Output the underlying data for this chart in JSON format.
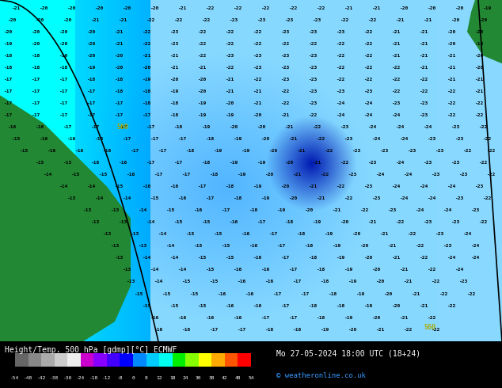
{
  "title_left": "Height/Temp. 500 hPa [gdmp][°C] ECMWF",
  "title_right": "Mo 27-05-2024 18:00 UTC (18+24)",
  "credit": "© weatheronline.co.uk",
  "colorbar_levels": [
    -54,
    -48,
    -42,
    -38,
    -30,
    -24,
    -18,
    -12,
    -8,
    0,
    8,
    12,
    18,
    24,
    30,
    38,
    42,
    48,
    54
  ],
  "colorbar_colors": [
    "#6e6e6e",
    "#a0a0a0",
    "#c8c8c8",
    "#e0e0e0",
    "#cc00cc",
    "#aa00ff",
    "#6600ff",
    "#0000ff",
    "#0066ff",
    "#00ccff",
    "#00ffff",
    "#00ff88",
    "#00cc00",
    "#66ff00",
    "#ffff00",
    "#ffaa00",
    "#ff6600",
    "#ff0000",
    "#cc0000"
  ],
  "bg_colors_grid": {
    "description": "Background color regions for the map area approximated by temperature zones",
    "left_cold": "#00ffff",
    "mid_blue": "#00aaff",
    "dark_blue": "#0044cc",
    "right_light_blue": "#88ddff",
    "land_green": "#008800"
  },
  "contour_label_color": "#000000",
  "label_560_color": "#aaaa00",
  "map_bg": "#88ccff"
}
